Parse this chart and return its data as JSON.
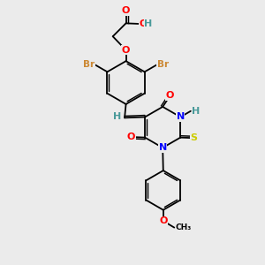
{
  "background_color": "#ebebeb",
  "atom_colors": {
    "C": "#000000",
    "H": "#4a9a9a",
    "O": "#ff0000",
    "N": "#0000ff",
    "Br": "#cc8833",
    "S": "#cccc00"
  },
  "font_size": 8,
  "line_color": "#000000",
  "line_width": 1.3
}
